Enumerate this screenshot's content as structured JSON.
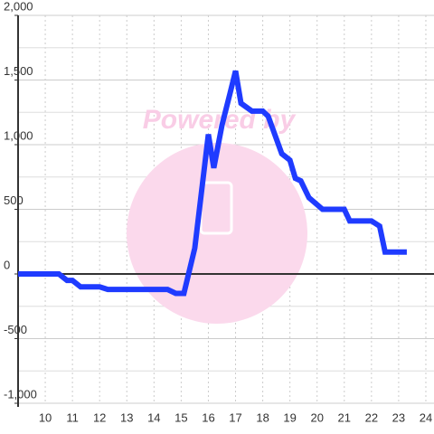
{
  "chart_data": {
    "type": "line",
    "watermark": "Powered by",
    "x": [
      9,
      10.5,
      10.8,
      11,
      11.3,
      12,
      12.3,
      14.5,
      14.8,
      15.1,
      15.5,
      16,
      16.2,
      16.5,
      16.8,
      17,
      17.2,
      17.6,
      18,
      18.2,
      18.7,
      19,
      19.2,
      19.4,
      19.7,
      20.2,
      21,
      21.2,
      22,
      22.3,
      22.5,
      23.3
    ],
    "series": [
      {
        "color": "#1f3bff",
        "values": [
          0,
          0,
          -50,
          -50,
          -100,
          -100,
          -120,
          -120,
          -150,
          -150,
          200,
          1080,
          820,
          1150,
          1400,
          1570,
          1320,
          1260,
          1260,
          1220,
          930,
          880,
          740,
          720,
          590,
          500,
          500,
          410,
          410,
          370,
          170,
          170
        ]
      }
    ],
    "xlim": [
      9,
      24.3
    ],
    "xticks": [
      10,
      11,
      12,
      13,
      14,
      15,
      16,
      17,
      18,
      19,
      20,
      21,
      22,
      23,
      24
    ],
    "ylim": [
      -1000,
      2000
    ],
    "yticks": [
      {
        "value": 2000,
        "label": "2,000"
      },
      {
        "value": 1500,
        "label": "1,500"
      },
      {
        "value": 1000,
        "label": "1,000"
      },
      500,
      0,
      -500,
      {
        "value": -1000,
        "label": "-1,000"
      }
    ],
    "yminorticks": [
      1750,
      1250,
      750,
      250,
      -250,
      -750
    ],
    "grid": true
  }
}
